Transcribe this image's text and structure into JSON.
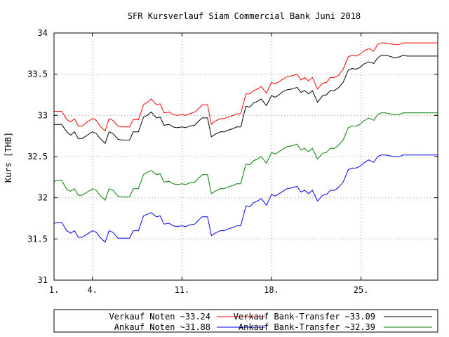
{
  "chart_data": {
    "type": "line",
    "title": "SFR Kursverlauf Siam Commercial Bank Juni 2018",
    "xlabel": "",
    "ylabel": "Kurs [THB]",
    "ylim": [
      31,
      34
    ],
    "xlim": [
      1,
      31
    ],
    "grid": true,
    "legend_position": "bottom",
    "y_ticks": [
      {
        "value": 31,
        "label": "31"
      },
      {
        "value": 31.5,
        "label": "31.5"
      },
      {
        "value": 32,
        "label": "32"
      },
      {
        "value": 32.5,
        "label": "32.5"
      },
      {
        "value": 33,
        "label": "33"
      },
      {
        "value": 33.5,
        "label": "33.5"
      },
      {
        "value": 34,
        "label": "34"
      }
    ],
    "x_ticks": [
      {
        "value": 1,
        "label": "1."
      },
      {
        "value": 4,
        "label": "4."
      },
      {
        "value": 11,
        "label": "11."
      },
      {
        "value": 18,
        "label": "18."
      },
      {
        "value": 25,
        "label": "25."
      }
    ],
    "x": [
      1,
      1.3,
      1.6,
      2,
      2.3,
      2.6,
      2.9,
      3.2,
      3.6,
      4,
      4.3,
      4.6,
      5,
      5.3,
      5.6,
      6,
      6.3,
      6.6,
      6.9,
      7.2,
      7.6,
      8,
      8.3,
      8.6,
      9,
      9.3,
      9.6,
      10,
      10.3,
      10.6,
      11,
      11.3,
      11.6,
      12,
      12.3,
      12.6,
      13,
      13.3,
      13.6,
      14,
      14.3,
      14.6,
      15,
      15.3,
      15.6,
      16,
      16.3,
      16.6,
      16.9,
      17.2,
      17.6,
      18,
      18.3,
      18.6,
      18.9,
      19.2,
      19.6,
      20,
      20.3,
      20.6,
      20.9,
      21.2,
      21.6,
      22,
      22.3,
      22.6,
      22.9,
      23.2,
      23.6,
      24,
      24.3,
      24.6,
      24.9,
      25.2,
      25.6,
      26,
      26.3,
      26.6,
      26.9,
      27.2,
      27.6,
      28,
      28.3,
      28.6,
      28.9,
      29.2,
      29.6,
      30,
      30.3,
      30.6,
      31
    ],
    "series": [
      {
        "name": "Verkauf Bank-Transfer ~33.09",
        "color": "#000000",
        "values": [
          32.89,
          32.89,
          32.89,
          32.8,
          32.76,
          32.8,
          32.72,
          32.72,
          32.76,
          32.8,
          32.78,
          32.72,
          32.66,
          32.8,
          32.78,
          32.71,
          32.7,
          32.7,
          32.7,
          32.8,
          32.8,
          32.98,
          33.0,
          33.04,
          32.97,
          32.98,
          32.88,
          32.89,
          32.86,
          32.85,
          32.86,
          32.85,
          32.87,
          32.88,
          32.93,
          32.97,
          32.97,
          32.74,
          32.77,
          32.8,
          32.8,
          32.82,
          32.84,
          32.86,
          32.86,
          33.11,
          33.1,
          33.15,
          33.17,
          33.2,
          33.12,
          33.24,
          33.22,
          33.25,
          33.29,
          33.31,
          33.32,
          33.34,
          33.28,
          33.3,
          33.26,
          33.3,
          33.16,
          33.24,
          33.25,
          33.3,
          33.3,
          33.33,
          33.4,
          33.55,
          33.57,
          33.56,
          33.58,
          33.62,
          33.65,
          33.63,
          33.7,
          33.73,
          33.73,
          33.72,
          33.7,
          33.71,
          33.73,
          33.72,
          33.72,
          33.72,
          33.72,
          33.72,
          33.72,
          33.72,
          33.72
        ]
      },
      {
        "name": "Verkauf Noten ~33.24",
        "color": "#ff0000",
        "values": [
          33.05,
          33.05,
          33.05,
          32.95,
          32.92,
          32.96,
          32.87,
          32.87,
          32.92,
          32.96,
          32.94,
          32.87,
          32.81,
          32.96,
          32.94,
          32.87,
          32.86,
          32.86,
          32.86,
          32.95,
          32.95,
          33.13,
          33.16,
          33.2,
          33.13,
          33.14,
          33.03,
          33.04,
          33.01,
          33.0,
          33.01,
          33.0,
          33.02,
          33.04,
          33.08,
          33.13,
          33.13,
          32.89,
          32.93,
          32.96,
          32.96,
          32.98,
          33.0,
          33.02,
          33.02,
          33.26,
          33.26,
          33.3,
          33.32,
          33.35,
          33.27,
          33.4,
          33.38,
          33.41,
          33.44,
          33.47,
          33.48,
          33.5,
          33.43,
          33.46,
          33.42,
          33.46,
          33.32,
          33.39,
          33.4,
          33.46,
          33.46,
          33.48,
          33.56,
          33.71,
          33.73,
          33.72,
          33.74,
          33.78,
          33.81,
          33.78,
          33.86,
          33.88,
          33.88,
          33.87,
          33.86,
          33.86,
          33.88,
          33.88,
          33.88,
          33.88,
          33.88,
          33.88,
          33.88,
          33.88,
          33.88
        ]
      },
      {
        "name": "Ankauf Noten ~31.88",
        "color": "#0000ff",
        "values": [
          31.69,
          31.7,
          31.7,
          31.6,
          31.57,
          31.6,
          31.52,
          31.52,
          31.56,
          31.6,
          31.58,
          31.52,
          31.46,
          31.6,
          31.58,
          31.51,
          31.51,
          31.51,
          31.51,
          31.6,
          31.6,
          31.78,
          31.8,
          31.82,
          31.77,
          31.78,
          31.68,
          31.69,
          31.66,
          31.65,
          31.66,
          31.65,
          31.67,
          31.68,
          31.73,
          31.77,
          31.77,
          31.54,
          31.57,
          31.6,
          31.6,
          31.62,
          31.64,
          31.66,
          31.66,
          31.9,
          31.89,
          31.94,
          31.96,
          31.99,
          31.91,
          32.04,
          32.02,
          32.05,
          32.08,
          32.11,
          32.12,
          32.14,
          32.07,
          32.09,
          32.05,
          32.09,
          31.96,
          32.03,
          32.04,
          32.09,
          32.09,
          32.12,
          32.19,
          32.34,
          32.36,
          32.36,
          32.38,
          32.42,
          32.46,
          32.43,
          32.5,
          32.52,
          32.52,
          32.51,
          32.5,
          32.5,
          32.52,
          32.52,
          32.52,
          32.52,
          32.52,
          32.52,
          32.52,
          32.52,
          32.52
        ]
      },
      {
        "name": "Ankauf Bank-Transfer ~32.39",
        "color": "#008000",
        "values": [
          32.2,
          32.21,
          32.21,
          32.1,
          32.08,
          32.11,
          32.03,
          32.03,
          32.07,
          32.11,
          32.09,
          32.03,
          31.97,
          32.11,
          32.09,
          32.02,
          32.01,
          32.01,
          32.01,
          32.11,
          32.11,
          32.28,
          32.31,
          32.33,
          32.28,
          32.29,
          32.19,
          32.2,
          32.17,
          32.16,
          32.17,
          32.16,
          32.18,
          32.19,
          32.24,
          32.28,
          32.28,
          32.05,
          32.08,
          32.11,
          32.11,
          32.13,
          32.15,
          32.17,
          32.17,
          32.41,
          32.4,
          32.45,
          32.47,
          32.5,
          32.42,
          32.55,
          32.53,
          32.56,
          32.59,
          32.62,
          32.63,
          32.65,
          32.58,
          32.6,
          32.56,
          32.6,
          32.47,
          32.54,
          32.55,
          32.6,
          32.6,
          32.63,
          32.7,
          32.85,
          32.87,
          32.87,
          32.89,
          32.93,
          32.97,
          32.94,
          33.01,
          33.03,
          33.03,
          33.02,
          33.01,
          33.01,
          33.03,
          33.03,
          33.03,
          33.03,
          33.03,
          33.03,
          33.03,
          33.03,
          33.03
        ]
      }
    ],
    "legend": [
      {
        "label": "Verkauf Noten ~33.24",
        "color": "#ff0000"
      },
      {
        "label": "Verkauf Bank-Transfer ~33.09",
        "color": "#000000"
      },
      {
        "label": "Ankauf Noten ~31.88",
        "color": "#0000ff"
      },
      {
        "label": "Ankauf Bank-Transfer ~32.39",
        "color": "#008000"
      }
    ]
  }
}
